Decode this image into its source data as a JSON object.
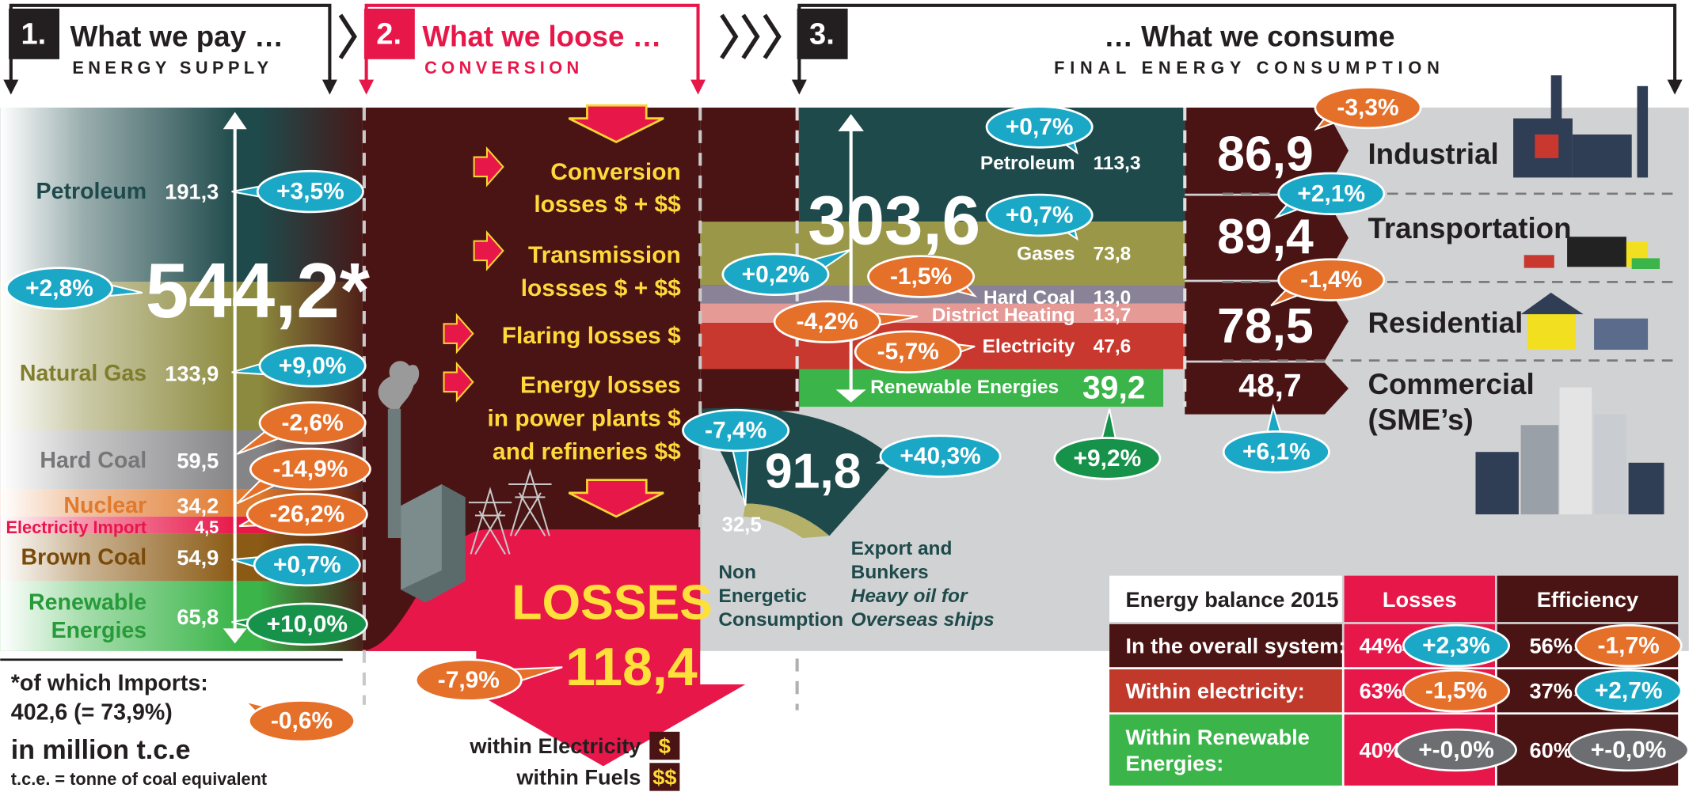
{
  "header": {
    "sections": [
      {
        "number": "1.",
        "title": "What we pay …",
        "subtitle": "ENERGY SUPPLY"
      },
      {
        "number": "2.",
        "title": "What we loose …",
        "subtitle": "CONVERSION"
      },
      {
        "number": "3.",
        "title": "… What we consume",
        "subtitle": "FINAL ENERGY CONSUMPTION"
      }
    ]
  },
  "supply": {
    "total": "544,2*",
    "total_change": "+2,8%",
    "items": [
      {
        "name": [
          "Petroleum"
        ],
        "value": "191,3",
        "change": "+3,5%"
      },
      {
        "name": [
          "Natural Gas"
        ],
        "value": "133,9",
        "change": "+9,0%"
      },
      {
        "name": [
          "Hard Coal"
        ],
        "value": "59,5",
        "change": "-2,6%"
      },
      {
        "name": [
          "Nuclear"
        ],
        "value": "34,2",
        "change": "-14,9%"
      },
      {
        "name": [
          "Electricity Import"
        ],
        "value": "4,5",
        "change": "-26,2%"
      },
      {
        "name": [
          "Brown Coal"
        ],
        "value": "54,9",
        "change": "+0,7%"
      },
      {
        "name": [
          "Renewable",
          "Energies"
        ],
        "value": "65,8",
        "change": "+10,0%"
      }
    ],
    "footnote": {
      "imports_label": "*of which Imports:",
      "imports_value": "402,6 (= 73,9%)",
      "imports_change": "-0,6%",
      "unit": "in million t.c.e",
      "unit_note": "t.c.e. = tonne of coal equivalent"
    }
  },
  "conversion": {
    "steps": [
      {
        "lines": [
          "Conversion",
          "losses $ + $$"
        ]
      },
      {
        "lines": [
          "Transmission",
          "lossses $ + $$"
        ]
      },
      {
        "lines": [
          "Flaring losses $"
        ]
      },
      {
        "lines": [
          "Energy losses",
          "in power plants $",
          "and refineries $$"
        ]
      }
    ],
    "losses_label": "LOSSES",
    "losses_value": "118,4",
    "losses_change": "-7,9%",
    "legend": [
      {
        "label": "within Electricity",
        "symbol": "$"
      },
      {
        "label": "within Fuels",
        "symbol": "$$"
      }
    ]
  },
  "consumption": {
    "total": "303,6",
    "total_change": "+0,2%",
    "carriers": [
      {
        "name": "Petroleum",
        "value": "113,3",
        "change": "+0,7%"
      },
      {
        "name": "Gases",
        "value": "73,8",
        "change": "+0,7%"
      },
      {
        "name": "Hard Coal",
        "value": "13,0",
        "change": "-1,5%"
      },
      {
        "name": "District Heating",
        "value": "13,7",
        "change": "-4,2%"
      },
      {
        "name": "Electricity",
        "value": "47,6",
        "change": "-5,7%"
      },
      {
        "name": "Renewable Energies",
        "value": "39,2",
        "change": "+9,2%"
      }
    ],
    "non_energetic": {
      "value": "32,5",
      "change": "-7,4%",
      "label": [
        "Non",
        "Energetic",
        "Consumption"
      ]
    },
    "export": {
      "value": "91,8",
      "change": "+40,3%",
      "label": [
        "Export and",
        "Bunkers"
      ],
      "note": [
        "Heavy oil for",
        "Overseas ships"
      ]
    },
    "sectors": [
      {
        "name": [
          "Industrial"
        ],
        "value": "86,9",
        "change": "-3,3%"
      },
      {
        "name": [
          "Transportation"
        ],
        "value": "89,4",
        "change": "+2,1%"
      },
      {
        "name": [
          "Residential"
        ],
        "value": "78,5",
        "change": "-1,4%"
      },
      {
        "name": [
          "Commercial",
          "(SME’s)"
        ],
        "value": "48,7",
        "change": "+6,1%"
      }
    ]
  },
  "balance": {
    "header": [
      "Energy balance 2015",
      "Losses",
      "Efficiency"
    ],
    "rows": [
      {
        "label": [
          "In the overall system:"
        ],
        "losses": "44%",
        "losses_change": "+2,3%",
        "efficiency": "56%",
        "efficiency_change": "-1,7%"
      },
      {
        "label": [
          "Within electricity:"
        ],
        "losses": "63%",
        "losses_change": "-1,5%",
        "efficiency": "37%",
        "efficiency_change": "+2,7%"
      },
      {
        "label": [
          "Within Renewable",
          "Energies:"
        ],
        "losses": "40%",
        "losses_change": "+-0,0%",
        "efficiency": "60%",
        "efficiency_change": "+-0,0%"
      }
    ]
  }
}
